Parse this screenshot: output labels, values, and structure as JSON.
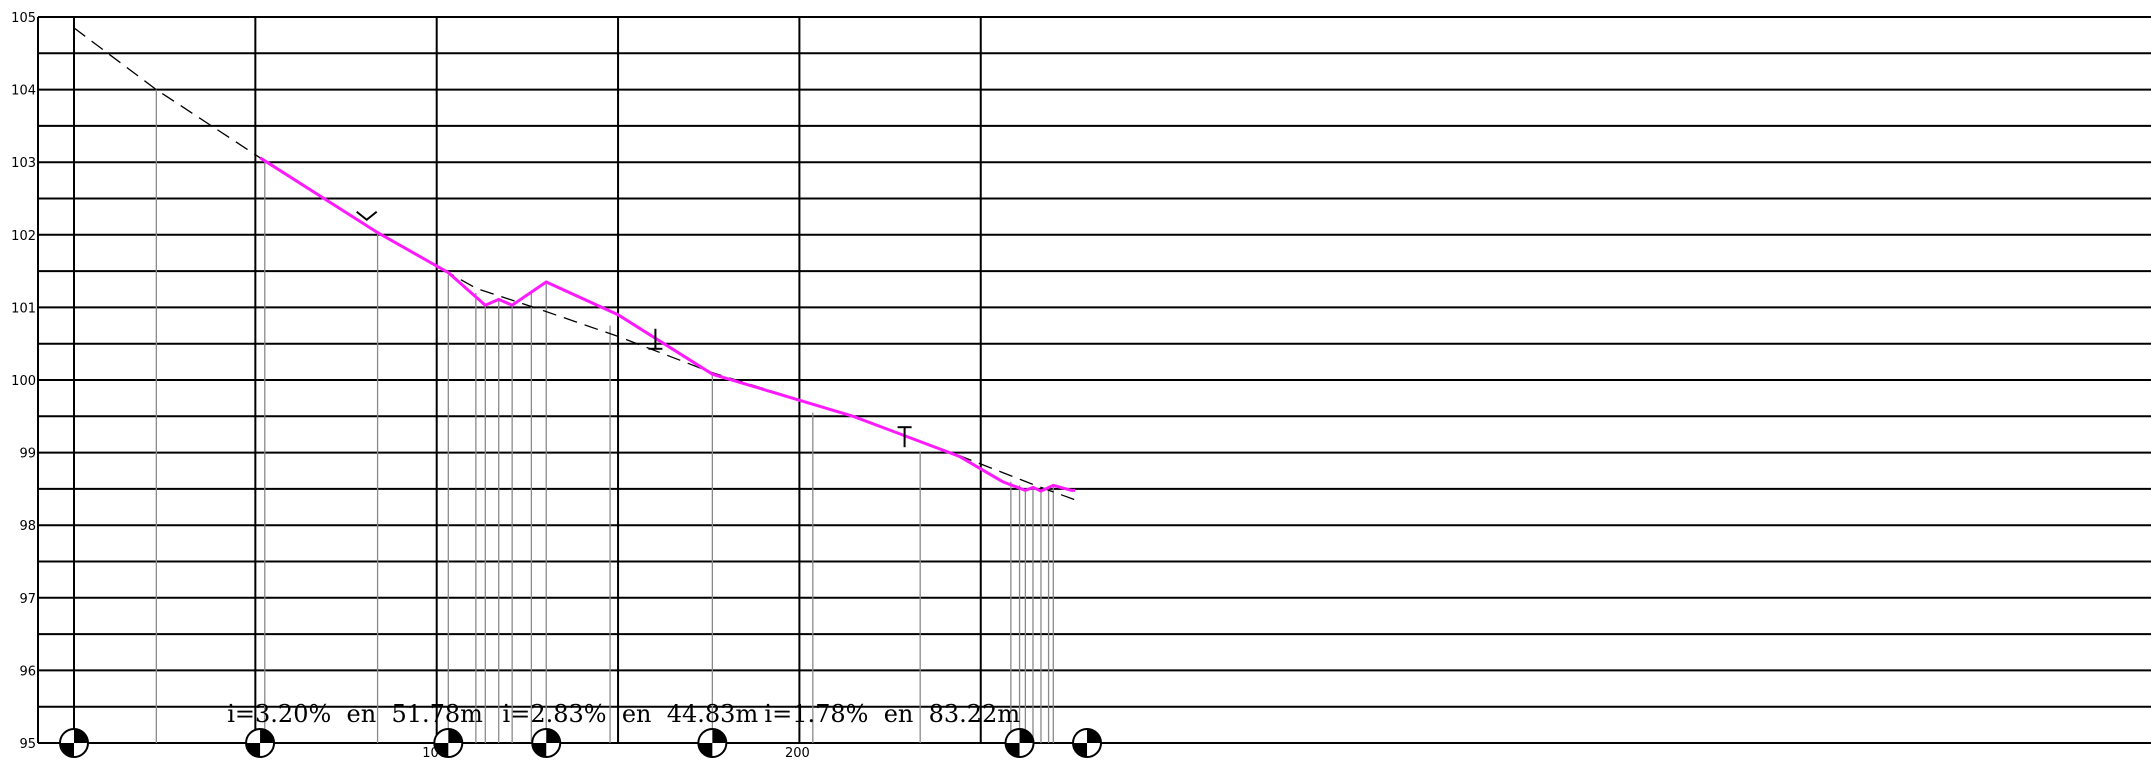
{
  "chart_data": {
    "type": "line",
    "title": "",
    "xlabel": "",
    "ylabel": "",
    "ylim": [
      95,
      105
    ],
    "xlim": [
      -5,
      276
    ],
    "yticks": [
      "95",
      "96",
      "97",
      "98",
      "99",
      "100",
      "101",
      "102",
      "103",
      "104",
      "105"
    ],
    "xticks": [
      {
        "x": 100,
        "label": "100"
      },
      {
        "x": 200,
        "label": "200"
      }
    ],
    "major_x_gridlines": [
      0,
      50,
      100,
      150,
      200,
      250
    ],
    "minor_y_step": 0.5,
    "series": [
      {
        "style": "dashed",
        "color": "#000000",
        "x": [
          0,
          22.7,
          51.3,
          83.7,
          103.2,
          111,
          127.4,
          150,
          176,
          214.8,
          244,
          265,
          276
        ],
        "y": [
          104.85,
          104.0,
          103.06,
          102.03,
          101.48,
          101.26,
          100.99,
          100.6,
          100.1,
          99.5,
          98.96,
          98.55,
          98.35
        ]
      },
      {
        "style": "solid",
        "color": "#ff00ff",
        "x": [
          51.3,
          83.7,
          103.2,
          113.4,
          117.1,
          120.8,
          130.2,
          150,
          176,
          214.8,
          244,
          256,
          262.3,
          264.4,
          266.6,
          270,
          275,
          276
        ],
        "y": [
          103.06,
          102.03,
          101.48,
          101.03,
          101.11,
          101.03,
          101.35,
          100.9,
          100.08,
          99.5,
          98.95,
          98.6,
          98.48,
          98.52,
          98.47,
          98.55,
          98.48,
          98.48
        ]
      }
    ],
    "drop_lines": [
      {
        "x": 22.7,
        "y": 104.0
      },
      {
        "x": 52.6,
        "y": 103.0
      },
      {
        "x": 83.7,
        "y": 102.03
      },
      {
        "x": 103.2,
        "y": 101.45
      },
      {
        "x": 110.8,
        "y": 101.2
      },
      {
        "x": 113.4,
        "y": 101.03
      },
      {
        "x": 117.1,
        "y": 101.11
      },
      {
        "x": 120.8,
        "y": 101.03
      },
      {
        "x": 126.1,
        "y": 101.2
      },
      {
        "x": 130.2,
        "y": 101.35
      },
      {
        "x": 147.8,
        "y": 100.75
      },
      {
        "x": 176,
        "y": 100.08
      },
      {
        "x": 203.7,
        "y": 99.55
      },
      {
        "x": 233.3,
        "y": 99.02
      },
      {
        "x": 258.3,
        "y": 98.6
      },
      {
        "x": 260.7,
        "y": 98.55
      },
      {
        "x": 262.3,
        "y": 98.48
      },
      {
        "x": 264.4,
        "y": 98.52
      },
      {
        "x": 266.6,
        "y": 98.47
      },
      {
        "x": 268.7,
        "y": 98.5
      },
      {
        "x": 270,
        "y": 98.55
      }
    ],
    "markers": [
      {
        "type": "survey-mark",
        "x": 0
      },
      {
        "type": "survey-mark",
        "x": 51.3
      },
      {
        "type": "survey-mark",
        "x": 103.2
      },
      {
        "type": "survey-mark",
        "x": 130.2
      },
      {
        "type": "survey-mark",
        "x": 176
      },
      {
        "type": "survey-mark",
        "x": 260.7
      },
      {
        "type": "survey-mark",
        "x": 279.3
      }
    ],
    "curve_symbols": [
      {
        "type": "sag-vertex",
        "x": 80.7,
        "y": 102.18
      },
      {
        "type": "tangent-down",
        "x": 160.3,
        "y": 100.43
      },
      {
        "type": "tangent-up",
        "x": 229,
        "y": 99.35
      }
    ],
    "annotations": [
      {
        "text": "i=3.20%  en  51.78m",
        "x": 77.5,
        "y": 95.25
      },
      {
        "text": "i=2.83%  en  44.83m",
        "x": 153.4,
        "y": 95.25
      },
      {
        "text": "i=1.78%  en  83.22m",
        "x": 225.6,
        "y": 95.25
      }
    ]
  }
}
